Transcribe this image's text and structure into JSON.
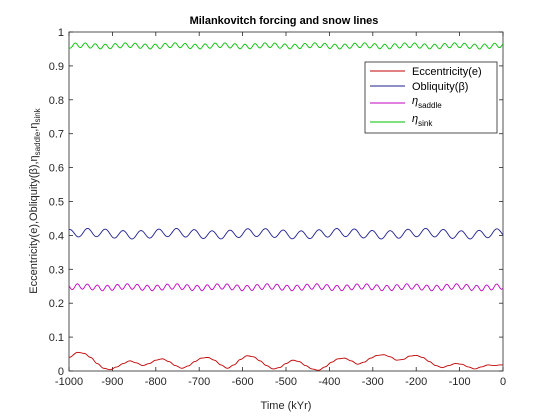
{
  "chart_data": {
    "type": "line",
    "title": "Milankovitch forcing and snow lines",
    "xlabel": "Time (kYr)",
    "ylabel_parts": [
      "Eccentricity(e),Obliquity(",
      "β",
      "),",
      "η",
      "saddle",
      ",",
      "η",
      "sink"
    ],
    "xlim": [
      -1000,
      0
    ],
    "ylim": [
      0,
      1
    ],
    "xticks": [
      "-1000",
      "-900",
      "-800",
      "-700",
      "-600",
      "-500",
      "-400",
      "-300",
      "-200",
      "-100",
      "0"
    ],
    "yticks": [
      "0",
      "0.1",
      "0.2",
      "0.3",
      "0.4",
      "0.5",
      "0.6",
      "0.7",
      "0.8",
      "0.9",
      "1"
    ],
    "legend_position": "top-right",
    "series": [
      {
        "name": "Eccentricity(e)",
        "label_main": "Eccentricity(e)",
        "label_sub": "",
        "color": "#c00000",
        "x": [
          -1000,
          -980,
          -965,
          -950,
          -935,
          -920,
          -905,
          -890,
          -875,
          -860,
          -845,
          -830,
          -815,
          -800,
          -785,
          -770,
          -755,
          -740,
          -725,
          -710,
          -695,
          -680,
          -665,
          -650,
          -635,
          -620,
          -605,
          -590,
          -575,
          -560,
          -545,
          -530,
          -515,
          -500,
          -485,
          -470,
          -455,
          -440,
          -425,
          -410,
          -395,
          -380,
          -365,
          -350,
          -335,
          -320,
          -305,
          -290,
          -275,
          -260,
          -245,
          -230,
          -215,
          -200,
          -185,
          -170,
          -155,
          -140,
          -125,
          -110,
          -95,
          -80,
          -65,
          -50,
          -35,
          -20,
          -5,
          0
        ],
        "y": [
          0.04,
          0.055,
          0.052,
          0.04,
          0.022,
          0.008,
          0.004,
          0.012,
          0.022,
          0.03,
          0.024,
          0.016,
          0.022,
          0.032,
          0.036,
          0.028,
          0.016,
          0.008,
          0.015,
          0.028,
          0.038,
          0.04,
          0.032,
          0.018,
          0.008,
          0.018,
          0.034,
          0.045,
          0.042,
          0.03,
          0.016,
          0.006,
          0.01,
          0.022,
          0.032,
          0.028,
          0.016,
          0.006,
          0.002,
          0.012,
          0.026,
          0.036,
          0.038,
          0.03,
          0.02,
          0.026,
          0.038,
          0.046,
          0.048,
          0.042,
          0.032,
          0.034,
          0.044,
          0.046,
          0.04,
          0.028,
          0.016,
          0.01,
          0.016,
          0.022,
          0.02,
          0.012,
          0.006,
          0.012,
          0.018,
          0.016,
          0.018,
          0.018
        ]
      },
      {
        "name": "Obliquity(β)",
        "label_main": "Obliquity(",
        "label_greek": "β",
        "label_close": ")",
        "label_sub": "",
        "color": "#1f1f8f",
        "base": 0.405,
        "amplitude": 0.012,
        "period": 41
      },
      {
        "name": "η saddle",
        "label_main": "η",
        "label_sub": "saddle",
        "color": "#c000c0",
        "base": 0.247,
        "amplitude": 0.008,
        "period": 23
      },
      {
        "name": "η sink",
        "label_main": "η",
        "label_sub": "sink",
        "color": "#00c000",
        "base": 0.959,
        "amplitude": 0.007,
        "period": 23
      }
    ]
  }
}
